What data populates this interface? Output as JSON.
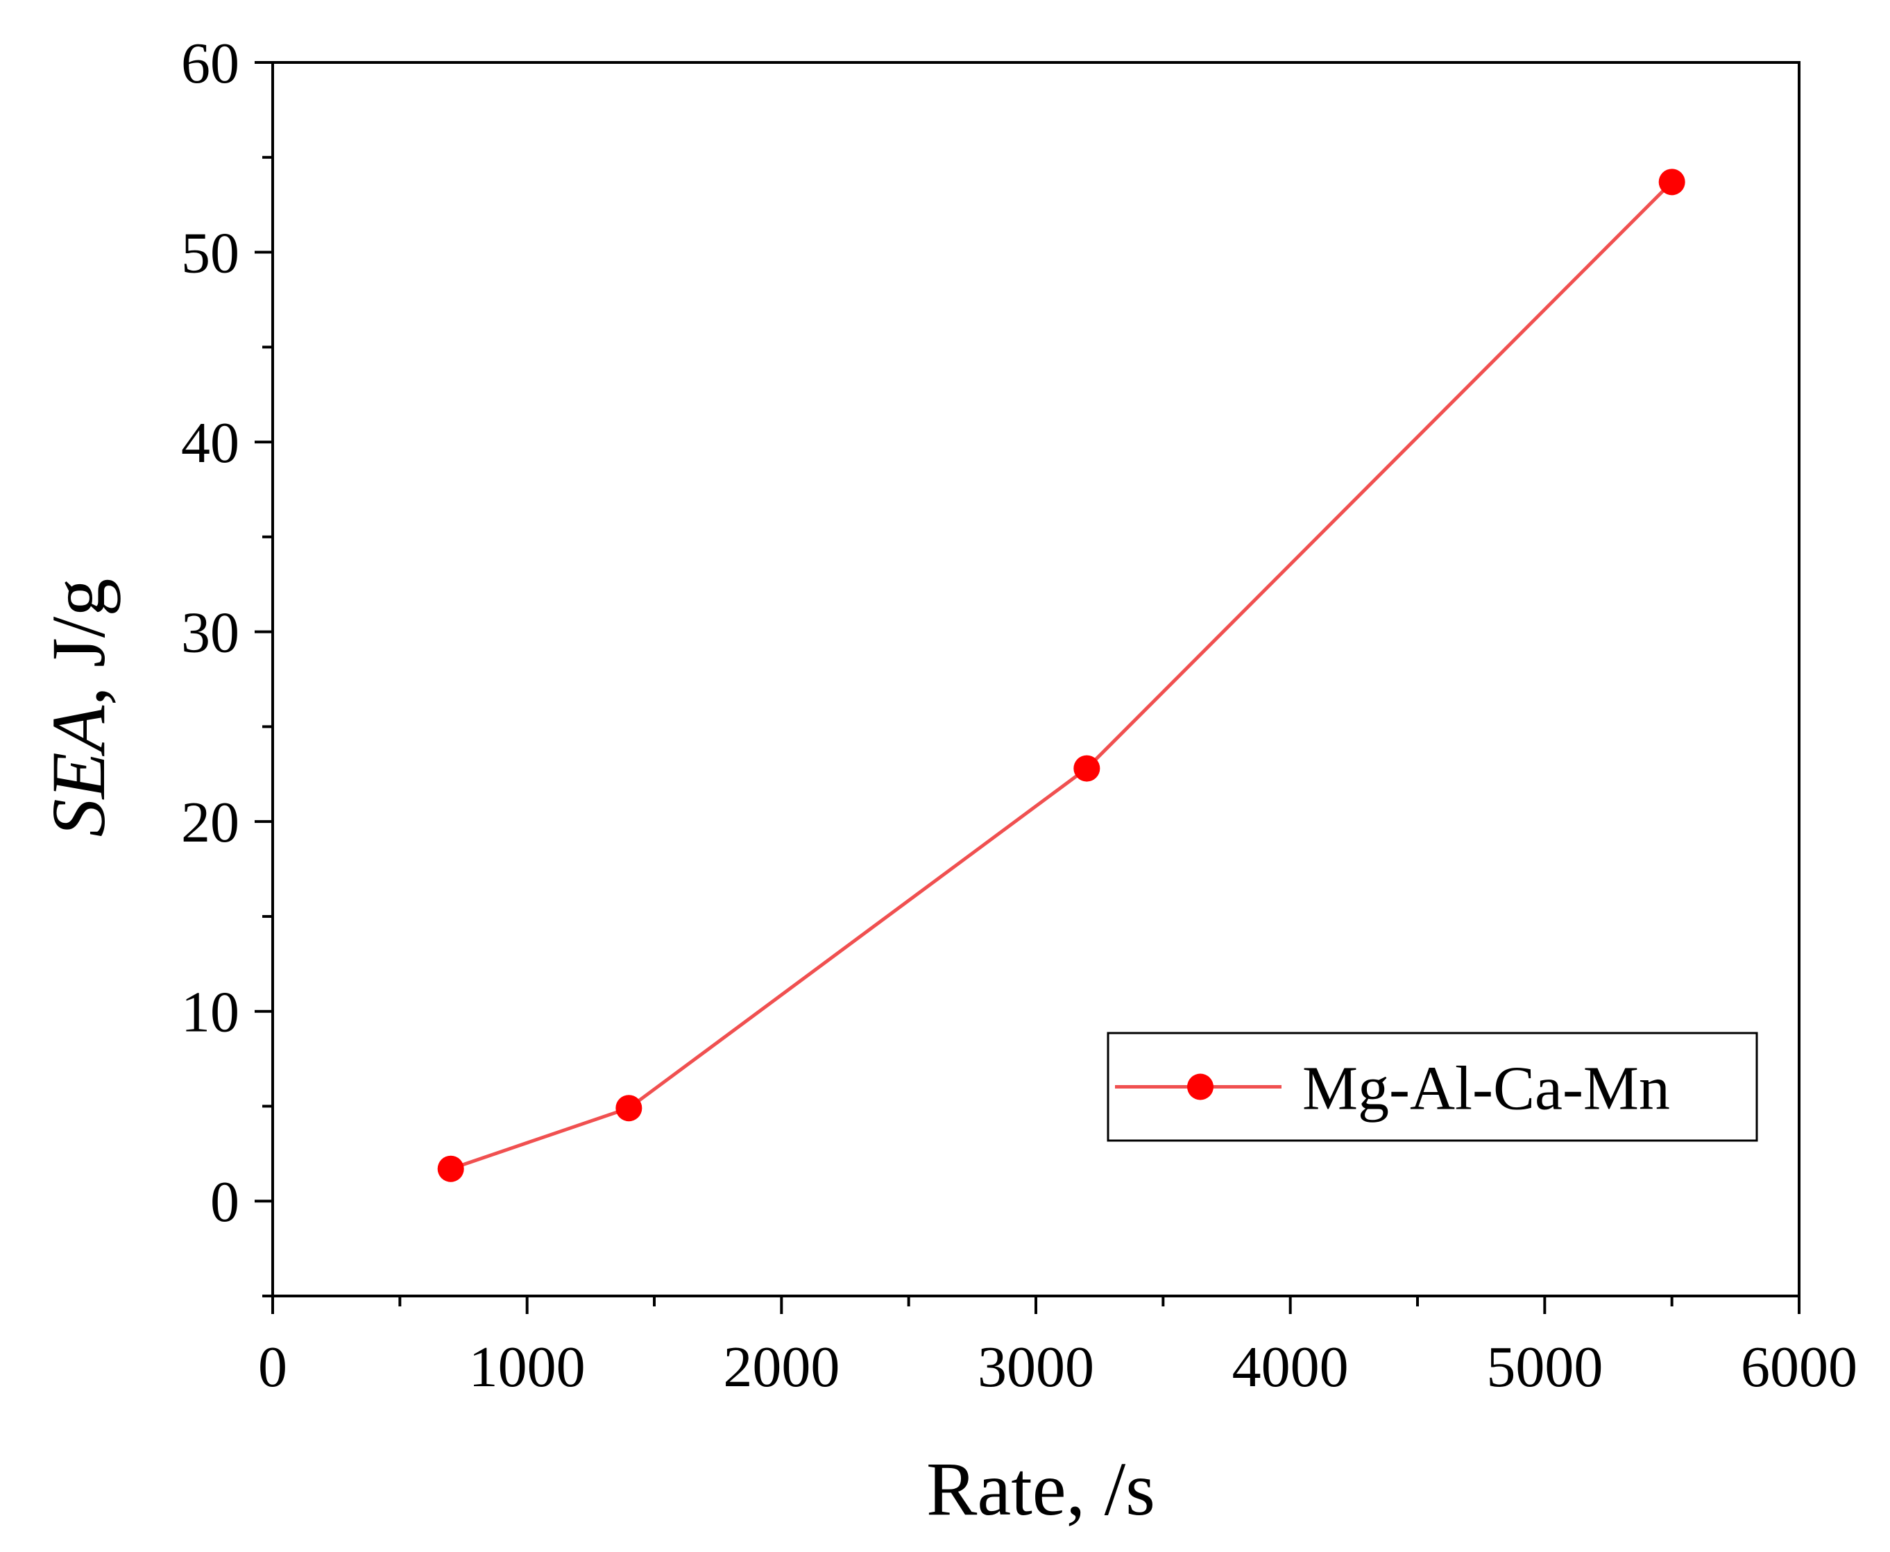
{
  "chart_data": {
    "type": "line",
    "title": "",
    "xlabel": "Rate, /s",
    "ylabel_italic": "SEA",
    "ylabel_rest": ", J/g",
    "xlim": [
      0,
      6000
    ],
    "ylim": [
      -5,
      60
    ],
    "x_major_ticks": [
      0,
      1000,
      2000,
      3000,
      4000,
      5000,
      6000
    ],
    "x_tick_labels": [
      "0",
      "1000",
      "2000",
      "3000",
      "4000",
      "5000",
      "6000"
    ],
    "x_minor_ticks": [
      500,
      1500,
      2500,
      3500,
      4500,
      5500
    ],
    "y_major_ticks": [
      0,
      10,
      20,
      30,
      40,
      50,
      60
    ],
    "y_tick_labels": [
      "0",
      "10",
      "20",
      "30",
      "40",
      "50",
      "60"
    ],
    "y_minor_ticks": [
      -5,
      5,
      15,
      25,
      35,
      45,
      55
    ],
    "grid": false,
    "legend_position": "bottom-right",
    "series": [
      {
        "name": "Mg-Al-Ca-Mn",
        "color": "#ff0000",
        "line_color": "#f05050",
        "marker": "circle",
        "x": [
          700,
          1400,
          3200,
          5500
        ],
        "y": [
          1.7,
          4.9,
          22.8,
          53.7
        ]
      }
    ]
  }
}
